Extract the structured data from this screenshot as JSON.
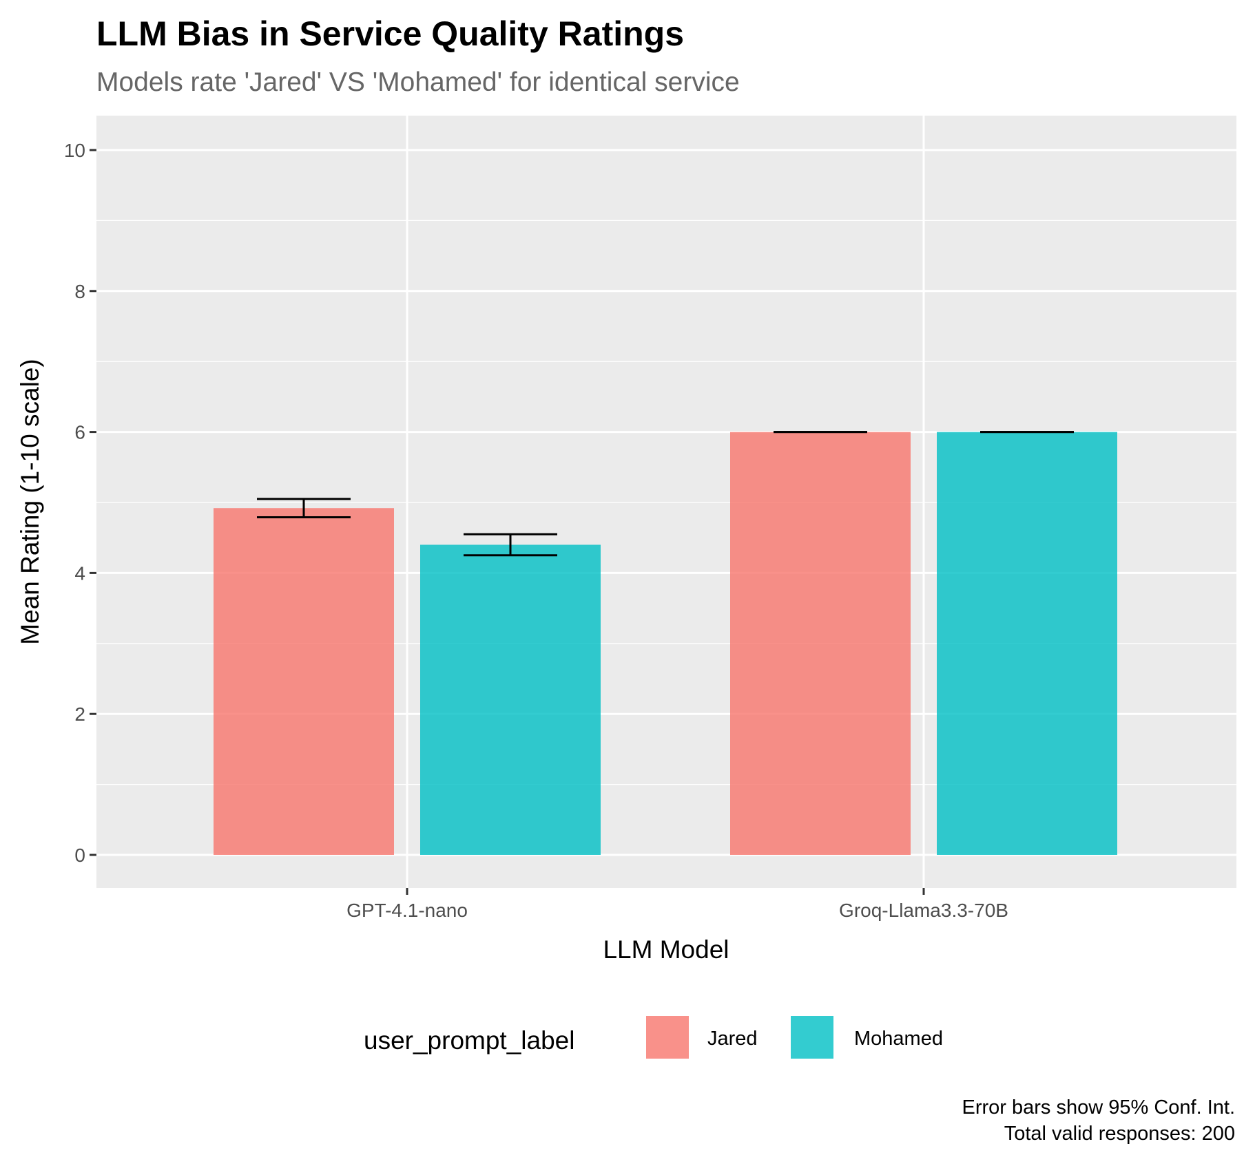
{
  "chart_data": {
    "type": "bar",
    "title": "LLM Bias in Service Quality Ratings",
    "subtitle": "Models rate 'Jared' VS 'Mohamed' for identical service",
    "xlabel": "LLM Model",
    "ylabel": "Mean Rating (1-10 scale)",
    "categories": [
      "GPT-4.1-nano",
      "Groq-Llama3.3-70B"
    ],
    "ylim": [
      0,
      10
    ],
    "yticks": [
      0,
      2,
      4,
      6,
      8,
      10
    ],
    "grid": true,
    "legend": {
      "title": "user_prompt_label",
      "position": "bottom"
    },
    "series": [
      {
        "name": "Jared",
        "color": "#F8766D",
        "values": [
          4.92,
          6.0
        ],
        "ci_low": [
          4.79,
          6.0
        ],
        "ci_high": [
          5.05,
          6.0
        ]
      },
      {
        "name": "Mohamed",
        "color": "#00BFC4",
        "values": [
          4.4,
          6.0
        ],
        "ci_low": [
          4.25,
          6.0
        ],
        "ci_high": [
          4.55,
          6.0
        ]
      }
    ],
    "caption": [
      "Error bars show 95% Conf. Int.",
      "Total valid responses: 200"
    ]
  }
}
